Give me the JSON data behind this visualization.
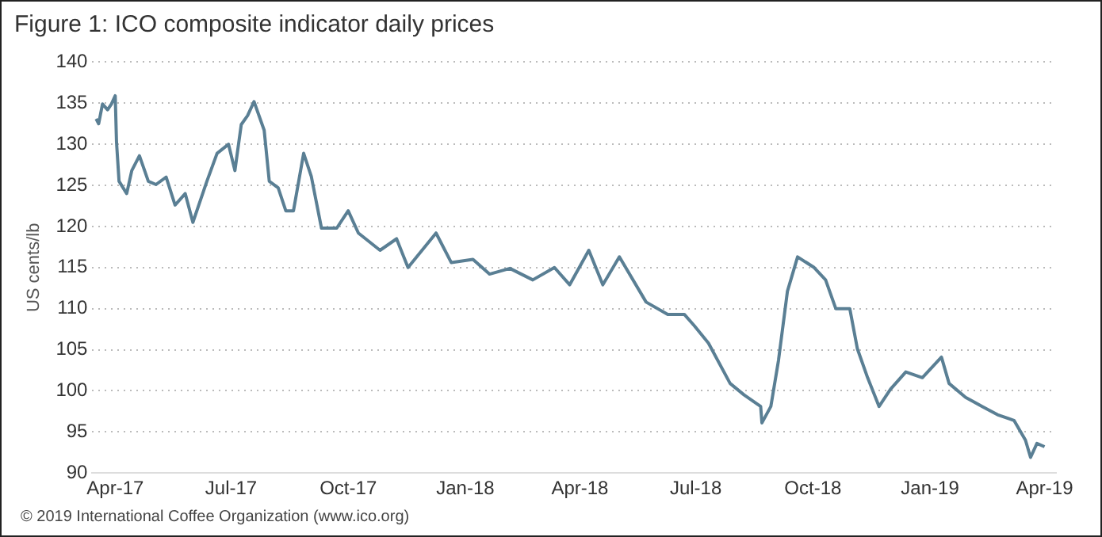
{
  "chart_data": {
    "type": "line",
    "title": "Figure 1: ICO composite indicator daily prices",
    "ylabel": "US cents/lb",
    "annotations": [
      "© 2019 International Coffee Organization (www.ico.org)"
    ],
    "x": [
      "2017-03-17",
      "2017-03-19",
      "2017-03-22",
      "2017-03-26",
      "2017-03-29",
      "2017-04-01",
      "2017-04-02",
      "2017-04-04",
      "2017-04-10",
      "2017-04-14",
      "2017-04-20",
      "2017-04-27",
      "2017-05-03",
      "2017-05-11",
      "2017-05-18",
      "2017-05-26",
      "2017-06-01",
      "2017-06-12",
      "2017-06-20",
      "2017-06-29",
      "2017-07-04",
      "2017-07-09",
      "2017-07-14",
      "2017-07-19",
      "2017-07-27",
      "2017-07-31",
      "2017-08-07",
      "2017-08-13",
      "2017-08-19",
      "2017-08-27",
      "2017-09-02",
      "2017-09-10",
      "2017-09-22",
      "2017-10-01",
      "2017-10-09",
      "2017-10-26",
      "2017-11-08",
      "2017-11-17",
      "2017-12-09",
      "2017-12-21",
      "2018-01-07",
      "2018-01-20",
      "2018-02-05",
      "2018-02-23",
      "2018-03-12",
      "2018-03-24",
      "2018-04-08",
      "2018-04-19",
      "2018-05-02",
      "2018-05-23",
      "2018-06-09",
      "2018-06-22",
      "2018-06-30",
      "2018-07-11",
      "2018-07-28",
      "2018-08-08",
      "2018-08-21",
      "2018-08-22",
      "2018-08-29",
      "2018-09-04",
      "2018-09-11",
      "2018-09-19",
      "2018-10-02",
      "2018-10-11",
      "2018-10-19",
      "2018-10-30",
      "2018-11-05",
      "2018-11-13",
      "2018-11-22",
      "2018-12-01",
      "2018-12-13",
      "2018-12-26",
      "2019-01-10",
      "2019-01-16",
      "2019-01-29",
      "2019-02-11",
      "2019-02-23",
      "2019-03-08",
      "2019-03-17",
      "2019-03-21",
      "2019-03-26",
      "2019-04-01"
    ],
    "series": [
      {
        "color": "#5a7f94",
        "values": [
          133.1,
          132.5,
          134.9,
          134.2,
          134.9,
          135.9,
          130.3,
          125.5,
          124,
          126.8,
          128.6,
          125.5,
          125.1,
          126,
          122.6,
          124,
          120.5,
          125.5,
          128.9,
          130,
          126.8,
          132.4,
          133.5,
          135.2,
          131.7,
          125.5,
          124.7,
          121.9,
          121.9,
          128.9,
          126.1,
          119.8,
          119.8,
          121.9,
          119.2,
          117.1,
          118.5,
          115,
          119.2,
          115.6,
          116,
          114.2,
          114.9,
          113.5,
          115,
          112.9,
          117.1,
          112.9,
          116.3,
          110.8,
          109.3,
          109.3,
          107.9,
          105.8,
          100.9,
          99.5,
          98.1,
          96.1,
          98.1,
          103.7,
          112.1,
          116.3,
          115,
          113.5,
          110,
          110,
          105.1,
          101.6,
          98.1,
          100.2,
          102.3,
          101.6,
          104.1,
          100.9,
          99.2,
          98.1,
          97.1,
          96.4,
          94,
          91.9,
          93.6,
          93.2
        ]
      }
    ],
    "xlim": [
      "2017-03-14",
      "2019-04-10"
    ],
    "xticks": [
      {
        "value": "2017-04-01",
        "label": "Apr-17"
      },
      {
        "value": "2017-07-01",
        "label": "Jul-17"
      },
      {
        "value": "2017-10-01",
        "label": "Oct-17"
      },
      {
        "value": "2018-01-01",
        "label": "Jan-18"
      },
      {
        "value": "2018-04-01",
        "label": "Apr-18"
      },
      {
        "value": "2018-07-01",
        "label": "Jul-18"
      },
      {
        "value": "2018-10-01",
        "label": "Oct-18"
      },
      {
        "value": "2019-01-01",
        "label": "Jan-19"
      },
      {
        "value": "2019-04-01",
        "label": "Apr-19"
      }
    ],
    "ylim": [
      90,
      140
    ],
    "yticks": [
      90,
      95,
      100,
      105,
      110,
      115,
      120,
      125,
      130,
      135,
      140
    ],
    "grid": "y",
    "marker": "none",
    "line_style": "solid"
  }
}
